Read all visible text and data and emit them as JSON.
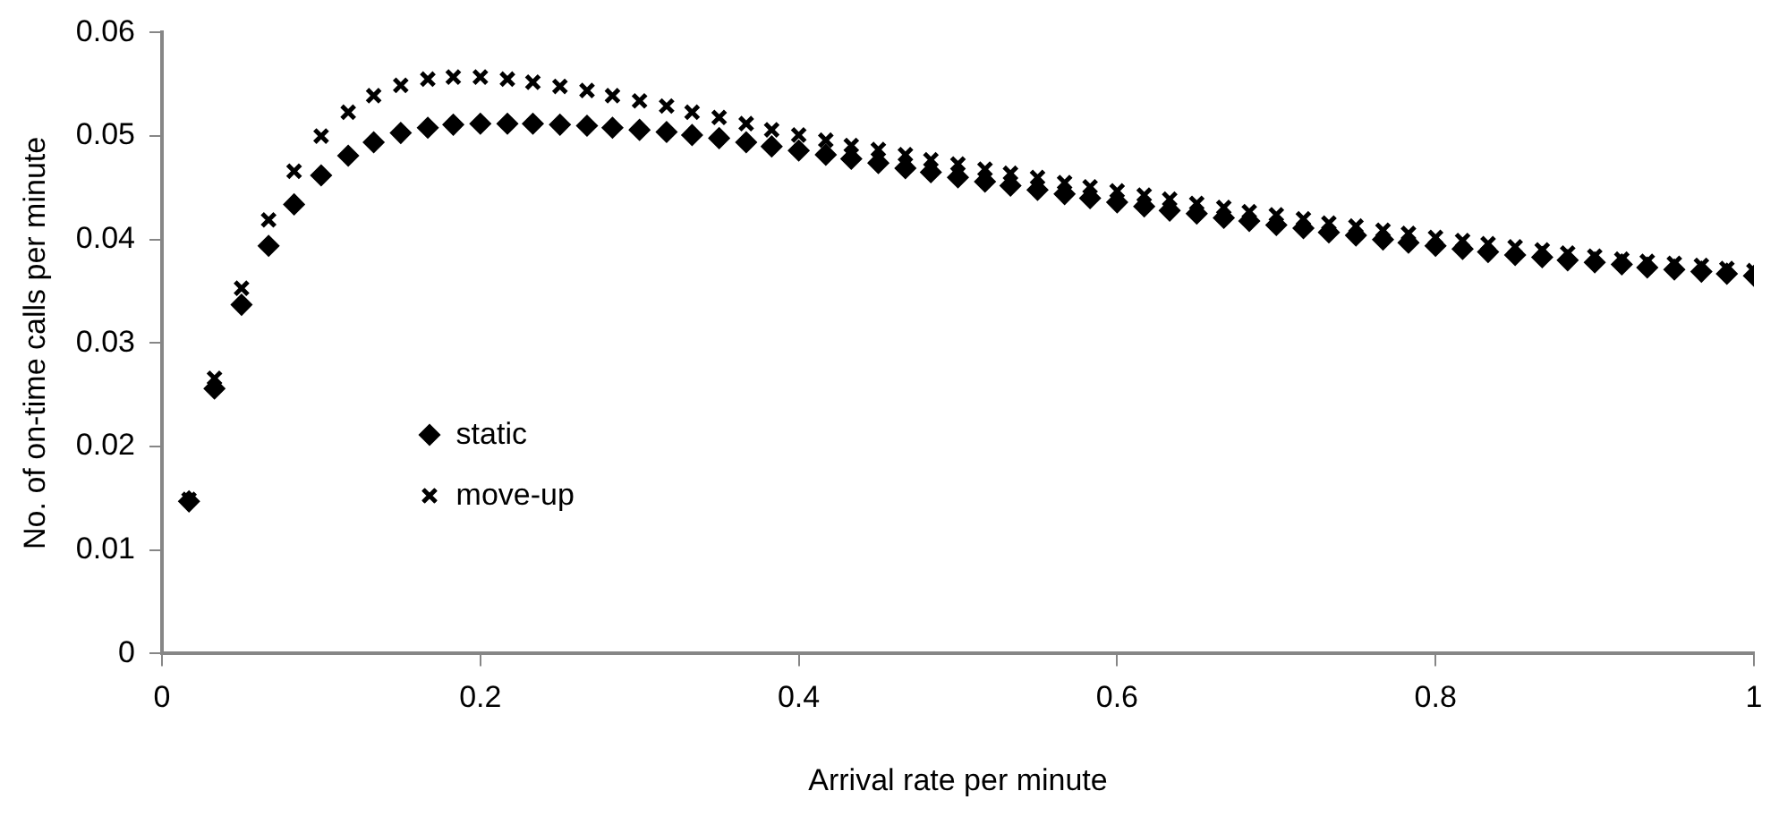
{
  "chart_data": {
    "type": "scatter",
    "xlabel": "Arrival rate per minute",
    "ylabel": "No. of on-time calls per minute",
    "x": [
      0.017,
      0.033,
      0.05,
      0.067,
      0.083,
      0.1,
      0.117,
      0.133,
      0.15,
      0.167,
      0.183,
      0.2,
      0.217,
      0.233,
      0.25,
      0.267,
      0.283,
      0.3,
      0.317,
      0.333,
      0.35,
      0.367,
      0.383,
      0.4,
      0.417,
      0.433,
      0.45,
      0.467,
      0.483,
      0.5,
      0.517,
      0.533,
      0.55,
      0.567,
      0.583,
      0.6,
      0.617,
      0.633,
      0.65,
      0.667,
      0.683,
      0.7,
      0.717,
      0.733,
      0.75,
      0.767,
      0.783,
      0.8,
      0.817,
      0.833,
      0.85,
      0.867,
      0.883,
      0.9,
      0.917,
      0.933,
      0.95,
      0.967,
      0.983,
      1
    ],
    "series": [
      {
        "name": "static",
        "color": "#000000",
        "marker": "diamond",
        "values": [
          0.0147,
          0.0256,
          0.0337,
          0.0394,
          0.0434,
          0.0462,
          0.0481,
          0.0494,
          0.0503,
          0.0508,
          0.0511,
          0.0512,
          0.0512,
          0.0512,
          0.0511,
          0.051,
          0.0508,
          0.0506,
          0.0504,
          0.0501,
          0.0498,
          0.0494,
          0.049,
          0.0486,
          0.0482,
          0.0478,
          0.0474,
          0.0469,
          0.0465,
          0.046,
          0.0456,
          0.0452,
          0.0448,
          0.0444,
          0.044,
          0.0436,
          0.0432,
          0.0428,
          0.0425,
          0.0421,
          0.0418,
          0.0414,
          0.0411,
          0.0407,
          0.0404,
          0.04,
          0.0397,
          0.0394,
          0.0391,
          0.0388,
          0.0385,
          0.0383,
          0.038,
          0.0378,
          0.0376,
          0.0373,
          0.0371,
          0.0369,
          0.0367,
          0.0365
        ]
      },
      {
        "name": "move-up",
        "color": "#000000",
        "marker": "cross",
        "values": [
          0.0149,
          0.0266,
          0.0353,
          0.0419,
          0.0466,
          0.05,
          0.0523,
          0.0539,
          0.0549,
          0.0555,
          0.0557,
          0.0557,
          0.0555,
          0.0552,
          0.0548,
          0.0544,
          0.0539,
          0.0534,
          0.0529,
          0.0523,
          0.0518,
          0.0512,
          0.0506,
          0.0501,
          0.0496,
          0.0491,
          0.0487,
          0.0482,
          0.0477,
          0.0473,
          0.0468,
          0.0464,
          0.046,
          0.0455,
          0.0451,
          0.0447,
          0.0443,
          0.0439,
          0.0435,
          0.0431,
          0.0427,
          0.0424,
          0.042,
          0.0416,
          0.0413,
          0.0409,
          0.0406,
          0.0402,
          0.0399,
          0.0396,
          0.0393,
          0.039,
          0.0387,
          0.0384,
          0.0381,
          0.0379,
          0.0377,
          0.0375,
          0.0372,
          0.037
        ]
      }
    ],
    "xlim": [
      0,
      1
    ],
    "xticks": [
      0,
      0.2,
      0.4,
      0.6,
      0.8,
      1
    ],
    "ylim": [
      0,
      0.06
    ],
    "yticks": [
      0,
      0.01,
      0.02,
      0.03,
      0.04,
      0.05,
      0.06
    ],
    "grid": false,
    "legend": "left"
  }
}
